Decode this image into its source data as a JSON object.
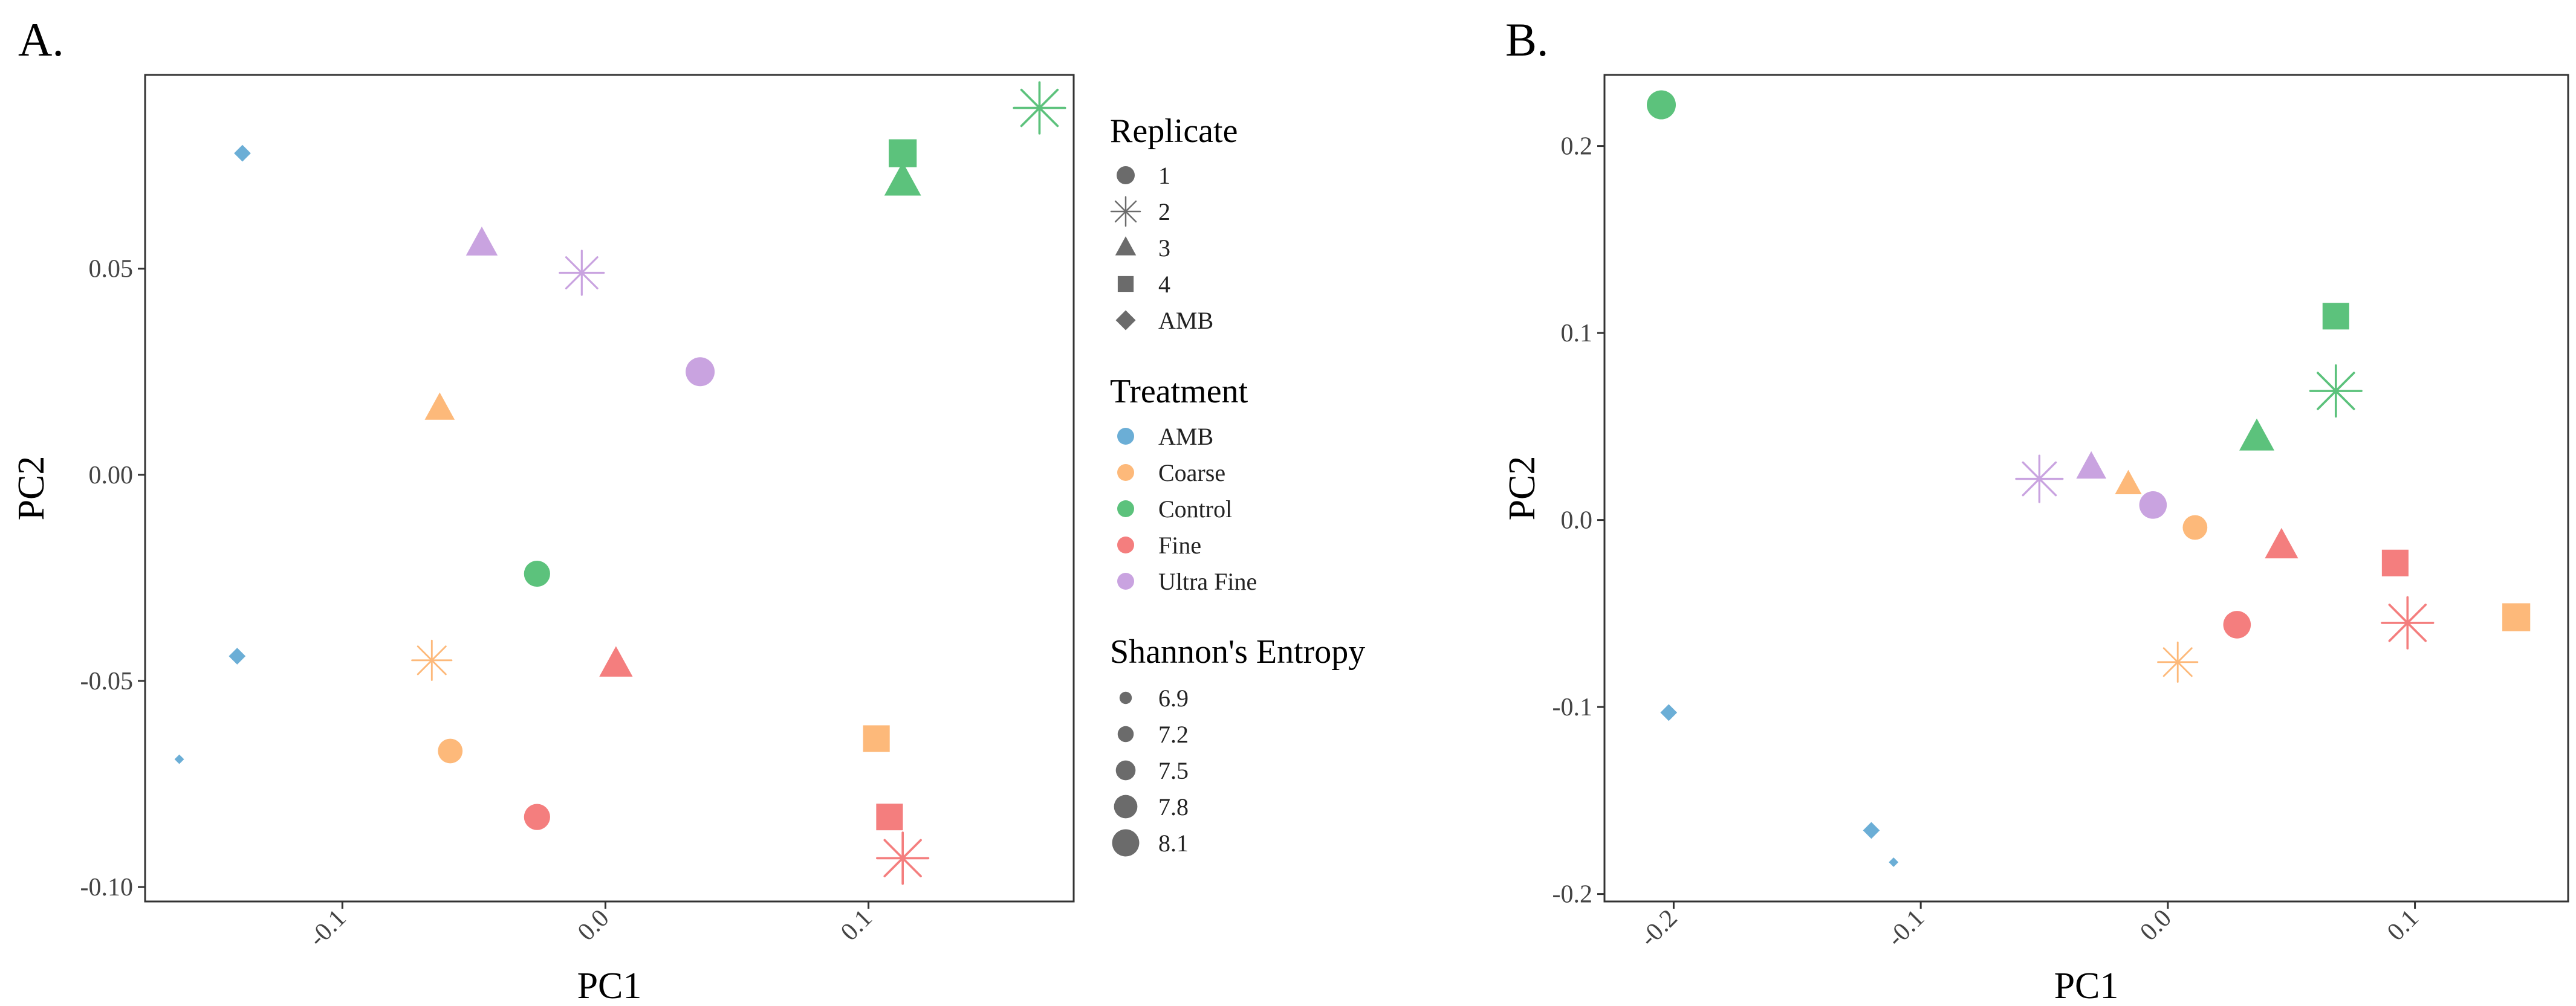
{
  "treatment_colors": {
    "AMB": "#6BAED6",
    "Coarse": "#FDB97A",
    "Control": "#5CC27C",
    "Fine": "#F47E7E",
    "Ultra Fine": "#C9A3E0"
  },
  "chart_data": [
    {
      "type": "scatter",
      "panel": "A.",
      "xlabel": "PC1",
      "ylabel": "PC2",
      "xticks": [
        -0.1,
        0.0,
        0.1
      ],
      "xtick_labels": [
        "-0.1",
        "0.0",
        "0.1"
      ],
      "yticks": [
        -0.1,
        -0.05,
        0.0,
        0.05
      ],
      "ytick_labels": [
        "-0.10",
        "-0.05",
        "0.00",
        "0.05"
      ],
      "xlim": [
        -0.175,
        0.178
      ],
      "ylim": [
        -0.1035,
        0.097
      ],
      "grid": false,
      "points": [
        {
          "x": -0.138,
          "y": 0.078,
          "replicate": "AMB",
          "treatment": "AMB",
          "entropy": 6.95
        },
        {
          "x": -0.14,
          "y": -0.044,
          "replicate": "AMB",
          "treatment": "AMB",
          "entropy": 6.95
        },
        {
          "x": -0.162,
          "y": -0.069,
          "replicate": "AMB",
          "treatment": "AMB",
          "entropy": 6.5
        },
        {
          "x": -0.047,
          "y": 0.056,
          "replicate": "3",
          "treatment": "Ultra Fine",
          "entropy": 7.8
        },
        {
          "x": -0.009,
          "y": 0.049,
          "replicate": "2",
          "treatment": "Ultra Fine",
          "entropy": 7.8
        },
        {
          "x": 0.036,
          "y": 0.025,
          "replicate": "1",
          "treatment": "Ultra Fine",
          "entropy": 7.9
        },
        {
          "x": -0.063,
          "y": 0.016,
          "replicate": "3",
          "treatment": "Coarse",
          "entropy": 7.7
        },
        {
          "x": -0.066,
          "y": -0.045,
          "replicate": "2",
          "treatment": "Coarse",
          "entropy": 7.6
        },
        {
          "x": -0.059,
          "y": -0.067,
          "replicate": "1",
          "treatment": "Coarse",
          "entropy": 7.6
        },
        {
          "x": 0.103,
          "y": -0.064,
          "replicate": "4",
          "treatment": "Coarse",
          "entropy": 8.0
        },
        {
          "x": -0.026,
          "y": -0.024,
          "replicate": "1",
          "treatment": "Control",
          "entropy": 7.7
        },
        {
          "x": 0.113,
          "y": 0.078,
          "replicate": "4",
          "treatment": "Control",
          "entropy": 8.1
        },
        {
          "x": 0.113,
          "y": 0.071,
          "replicate": "3",
          "treatment": "Control",
          "entropy": 8.1
        },
        {
          "x": 0.165,
          "y": 0.089,
          "replicate": "2",
          "treatment": "Control",
          "entropy": 8.1
        },
        {
          "x": 0.004,
          "y": -0.046,
          "replicate": "3",
          "treatment": "Fine",
          "entropy": 7.9
        },
        {
          "x": -0.026,
          "y": -0.083,
          "replicate": "1",
          "treatment": "Fine",
          "entropy": 7.7
        },
        {
          "x": 0.108,
          "y": -0.083,
          "replicate": "4",
          "treatment": "Fine",
          "entropy": 8.0
        },
        {
          "x": 0.113,
          "y": -0.093,
          "replicate": "2",
          "treatment": "Fine",
          "entropy": 8.1
        }
      ]
    },
    {
      "type": "scatter",
      "panel": "B.",
      "xlabel": "PC1",
      "ylabel": "PC2",
      "xticks": [
        -0.2,
        -0.1,
        0.0,
        0.1
      ],
      "xtick_labels": [
        "-0.2",
        "-0.1",
        "0.0",
        "0.1"
      ],
      "yticks": [
        -0.2,
        -0.1,
        0.0,
        0.1,
        0.2
      ],
      "ytick_labels": [
        "-0.2",
        "-0.1",
        "0.0",
        "0.1",
        "0.2"
      ],
      "xlim": [
        -0.228,
        0.162
      ],
      "ylim": [
        -0.204,
        0.238
      ],
      "grid": false,
      "points": [
        {
          "x": -0.205,
          "y": 0.222,
          "replicate": "1",
          "treatment": "Control",
          "entropy": 7.9
        },
        {
          "x": 0.068,
          "y": 0.109,
          "replicate": "4",
          "treatment": "Control",
          "entropy": 8.0
        },
        {
          "x": 0.068,
          "y": 0.069,
          "replicate": "2",
          "treatment": "Control",
          "entropy": 8.1
        },
        {
          "x": 0.036,
          "y": 0.044,
          "replicate": "3",
          "treatment": "Control",
          "entropy": 8.0
        },
        {
          "x": -0.052,
          "y": 0.022,
          "replicate": "2",
          "treatment": "Ultra Fine",
          "entropy": 7.9
        },
        {
          "x": -0.031,
          "y": 0.028,
          "replicate": "3",
          "treatment": "Ultra Fine",
          "entropy": 7.7
        },
        {
          "x": -0.006,
          "y": 0.008,
          "replicate": "1",
          "treatment": "Ultra Fine",
          "entropy": 7.8
        },
        {
          "x": -0.016,
          "y": 0.019,
          "replicate": "3",
          "treatment": "Coarse",
          "entropy": 7.5
        },
        {
          "x": 0.011,
          "y": -0.004,
          "replicate": "1",
          "treatment": "Coarse",
          "entropy": 7.6
        },
        {
          "x": 0.004,
          "y": -0.076,
          "replicate": "2",
          "treatment": "Coarse",
          "entropy": 7.6
        },
        {
          "x": 0.141,
          "y": -0.052,
          "replicate": "4",
          "treatment": "Coarse",
          "entropy": 8.1
        },
        {
          "x": 0.046,
          "y": -0.014,
          "replicate": "3",
          "treatment": "Fine",
          "entropy": 7.9
        },
        {
          "x": 0.092,
          "y": -0.023,
          "replicate": "4",
          "treatment": "Fine",
          "entropy": 8.0
        },
        {
          "x": 0.028,
          "y": -0.056,
          "replicate": "1",
          "treatment": "Fine",
          "entropy": 7.8
        },
        {
          "x": 0.097,
          "y": -0.055,
          "replicate": "2",
          "treatment": "Fine",
          "entropy": 8.1
        },
        {
          "x": -0.202,
          "y": -0.103,
          "replicate": "AMB",
          "treatment": "AMB",
          "entropy": 6.95
        },
        {
          "x": -0.12,
          "y": -0.166,
          "replicate": "AMB",
          "treatment": "AMB",
          "entropy": 6.95
        },
        {
          "x": -0.111,
          "y": -0.183,
          "replicate": "AMB",
          "treatment": "AMB",
          "entropy": 6.5
        }
      ]
    }
  ],
  "legend": {
    "replicate": {
      "title": "Replicate",
      "items": [
        {
          "label": "1",
          "shape": "circle"
        },
        {
          "label": "2",
          "shape": "asterisk"
        },
        {
          "label": "3",
          "shape": "triangle"
        },
        {
          "label": "4",
          "shape": "square"
        },
        {
          "label": "AMB",
          "shape": "diamond"
        }
      ]
    },
    "treatment": {
      "title": "Treatment",
      "items": [
        {
          "label": "AMB",
          "color": "#6BAED6"
        },
        {
          "label": "Coarse",
          "color": "#FDB97A"
        },
        {
          "label": "Control",
          "color": "#5CC27C"
        },
        {
          "label": "Fine",
          "color": "#F47E7E"
        },
        {
          "label": "Ultra Fine",
          "color": "#C9A3E0"
        }
      ]
    },
    "entropy": {
      "title": "Shannon's Entropy",
      "items": [
        {
          "label": "6.9",
          "value": 6.9
        },
        {
          "label": "7.2",
          "value": 7.2
        },
        {
          "label": "7.5",
          "value": 7.5
        },
        {
          "label": "7.8",
          "value": 7.8
        },
        {
          "label": "8.1",
          "value": 8.1
        }
      ]
    }
  }
}
